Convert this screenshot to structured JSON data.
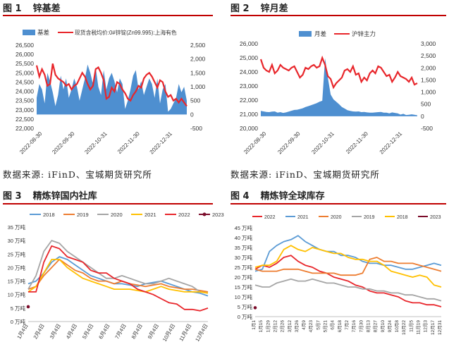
{
  "figures": [
    {
      "num": "图 1",
      "title": "锌基差"
    },
    {
      "num": "图 2",
      "title": "锌月差"
    },
    {
      "num": "图 3",
      "title": "精炼锌国内社库"
    },
    {
      "num": "图 4",
      "title": "精炼锌全球库存"
    }
  ],
  "source_top_left": "数据来源:  iFinD、宝城期货研究所",
  "source_top_right": "数据来源:  iFinD、宝城期货研究所",
  "colors": {
    "blue": "#4e8fd0",
    "red": "#e8262b",
    "orange": "#ed7d31",
    "gray": "#a5a5a5",
    "yellow": "#ffc000",
    "darkred": "#7b0c2a",
    "bluelight": "#5b9bd5"
  },
  "chart_data": [
    {
      "type": "area+line",
      "title": "",
      "legend": [
        "基差",
        "现货含税均价:0#锌锭(Zn99.995):上海有色"
      ],
      "x_ticks": [
        "2022-08-30",
        "2022-09-30",
        "2022-10-31",
        "2022-11-30",
        "2022-12-31"
      ],
      "y_left_ticks": [
        "22,000",
        "22,500",
        "23,000",
        "23,500",
        "24,000",
        "24,500",
        "25,000",
        "25,500",
        "26,000",
        "26,500"
      ],
      "y_left_lim": [
        22000,
        26500
      ],
      "y_right_ticks": [
        "-500",
        "0",
        "500",
        "1,000",
        "1,500",
        "2,000",
        "2,500"
      ],
      "y_right_lim": [
        -500,
        2500
      ],
      "series": [
        {
          "name": "基差",
          "axis": "right",
          "values": [
            600,
            1100,
            900,
            400,
            1500,
            1200,
            800,
            300,
            700,
            1400,
            900,
            1300,
            600,
            900,
            1300,
            1000,
            500,
            900,
            1300,
            1800,
            1500,
            1100,
            1700,
            1000,
            700,
            1600,
            900,
            1300,
            1500,
            1200,
            800,
            1300,
            1100,
            200,
            500,
            900,
            1400,
            1600,
            900,
            1200,
            700,
            1000,
            1300,
            1100,
            600,
            1300,
            400,
            900,
            1100,
            100,
            200,
            400,
            600,
            1100,
            800,
            1000,
            500
          ]
        },
        {
          "name": "现货含税均价:0#锌锭(Zn99.995):上海有色",
          "axis": "left",
          "values": [
            25400,
            24800,
            25200,
            24900,
            24300,
            24400,
            25500,
            24900,
            24700,
            24600,
            24500,
            24300,
            24400,
            24100,
            24300,
            24400,
            24700,
            25000,
            24800,
            24400,
            24100,
            24300,
            25200,
            25300,
            25000,
            24600,
            23600,
            23700,
            24200,
            24000,
            24500,
            24400,
            24100,
            23900,
            23600,
            23500,
            23800,
            24000,
            24300,
            24200,
            24700,
            24900,
            25000,
            24800,
            24500,
            24200,
            24600,
            24500,
            24000,
            23700,
            23800,
            23500,
            23600,
            23400,
            23600,
            23400,
            23200
          ]
        }
      ]
    },
    {
      "type": "area+line",
      "title": "",
      "legend": [
        "月差",
        "沪锌主力"
      ],
      "x_ticks": [
        "2022-08-30",
        "2022-09-30",
        "2022-10-31",
        "2022-11-30",
        "2022-12-31"
      ],
      "y_left_ticks": [
        "20,000",
        "21,000",
        "22,000",
        "23,000",
        "24,000",
        "25,000",
        "26,000"
      ],
      "y_left_lim": [
        20000,
        26000
      ],
      "y_right_ticks": [
        "-500",
        "0",
        "500",
        "1,000",
        "1,500",
        "2,000",
        "2,500",
        "3,000"
      ],
      "y_right_lim": [
        -500,
        3000
      ],
      "series": [
        {
          "name": "月差",
          "axis": "right",
          "values": [
            220,
            200,
            180,
            170,
            190,
            200,
            150,
            170,
            140,
            160,
            190,
            230,
            260,
            270,
            300,
            330,
            380,
            420,
            460,
            500,
            540,
            600,
            640,
            2400,
            1600,
            900,
            700,
            600,
            500,
            380,
            320,
            250,
            220,
            200,
            190,
            200,
            170,
            180,
            160,
            150,
            150,
            160,
            170,
            180,
            150,
            150,
            120,
            160,
            140,
            120,
            70,
            100,
            50,
            60,
            80,
            60,
            40
          ]
        },
        {
          "name": "沪锌主力",
          "axis": "left",
          "values": [
            24900,
            24300,
            24100,
            24000,
            24500,
            23900,
            24100,
            24500,
            24300,
            24200,
            24100,
            24300,
            24400,
            24000,
            23600,
            23800,
            24300,
            24200,
            24400,
            24500,
            24300,
            24400,
            25000,
            24500,
            23700,
            23500,
            22900,
            23200,
            23400,
            23600,
            24100,
            24200,
            24000,
            24400,
            23800,
            23900,
            23300,
            23600,
            23400,
            23900,
            24100,
            23900,
            24400,
            24300,
            24000,
            23700,
            23800,
            23300,
            23600,
            24000,
            23700,
            23600,
            23500,
            23300,
            23600,
            23100,
            23200
          ]
        }
      ]
    },
    {
      "type": "line",
      "title": "",
      "legend": [
        "2018",
        "2019",
        "2020",
        "2021",
        "2022",
        "2023"
      ],
      "x_ticks": [
        "1月4日",
        "2月4日",
        "3月4日",
        "4月4日",
        "5月4日",
        "6月4日",
        "7月4日",
        "8月4日",
        "9月4日",
        "10月4日",
        "11月4日",
        "12月4日"
      ],
      "y_ticks": [
        "0 万吨",
        "5 万吨",
        "10 万吨",
        "15 万吨",
        "20 万吨",
        "25 万吨",
        "30 万吨",
        "35 万吨"
      ],
      "ylim": [
        0,
        35
      ],
      "x_lim": [
        0,
        11.5
      ],
      "series": [
        {
          "name": "2018",
          "x": [
            0,
            0.5,
            1,
            1.5,
            2,
            2.5,
            3,
            3.5,
            4,
            4.5,
            5,
            5.5,
            6,
            6.5,
            7,
            7.5,
            8,
            8.5,
            9,
            9.5,
            10,
            10.5,
            11,
            11.5
          ],
          "values": [
            14,
            15,
            18,
            22,
            24,
            23,
            21,
            19,
            17,
            16,
            15,
            14,
            14,
            13.5,
            13,
            14,
            14.5,
            15,
            14,
            13,
            12,
            11,
            10.5,
            9.5
          ]
        },
        {
          "name": "2019",
          "x": [
            0,
            0.5,
            1,
            1.5,
            2,
            2.5,
            3,
            3.5,
            4,
            4.5,
            5,
            5.5,
            6,
            6.5,
            7,
            7.5,
            8,
            8.5,
            9,
            9.5,
            10,
            10.5,
            11,
            11.5
          ],
          "values": [
            12,
            13,
            17,
            20,
            23,
            21,
            19,
            18,
            16,
            15,
            15,
            14,
            15,
            14,
            13.5,
            13,
            13.5,
            14,
            13,
            12.5,
            12,
            12,
            11.5,
            11
          ]
        },
        {
          "name": "2020",
          "x": [
            0,
            0.5,
            1,
            1.5,
            2,
            2.5,
            3,
            3.5,
            4,
            4.5,
            5,
            5.5,
            6,
            6.5,
            7,
            7.5,
            8,
            8.5,
            9,
            9.5,
            10,
            10.5,
            11,
            11.5
          ],
          "values": [
            12,
            17,
            26,
            30,
            29,
            26,
            24,
            22,
            20,
            18,
            16,
            16,
            17,
            16,
            15,
            14,
            14,
            15,
            16,
            15,
            14,
            13,
            11,
            10.5
          ]
        },
        {
          "name": "2021",
          "x": [
            0,
            0.5,
            1,
            1.5,
            2,
            2.5,
            3,
            3.5,
            4,
            4.5,
            5,
            5.5,
            6,
            6.5,
            7,
            7.5,
            8,
            8.5,
            9,
            9.5,
            10,
            10.5,
            11,
            11.5
          ],
          "values": [
            11,
            13,
            18,
            23,
            23,
            20,
            18,
            16,
            15,
            14,
            13,
            12,
            12,
            12,
            11.5,
            11,
            12,
            13,
            12,
            11.5,
            11,
            11,
            11,
            10.5
          ]
        },
        {
          "name": "2022",
          "x": [
            0,
            0.5,
            1,
            1.5,
            2,
            2.5,
            3,
            3.5,
            4,
            4.5,
            5,
            5.5,
            6,
            6.5,
            7,
            7.5,
            8,
            8.5,
            9,
            9.5,
            10,
            10.5,
            11,
            11.5
          ],
          "values": [
            11,
            11,
            22,
            28,
            27,
            24,
            23,
            22,
            19,
            18,
            18,
            16,
            15,
            14,
            12,
            11,
            10,
            8.5,
            7,
            6.5,
            4.5,
            4.5,
            4,
            5
          ]
        },
        {
          "name": "2023",
          "x": [
            0
          ],
          "values": [
            5.5
          ]
        }
      ]
    },
    {
      "type": "line",
      "title": "",
      "legend": [
        "2022",
        "2021",
        "2020",
        "2019",
        "2018",
        "2023"
      ],
      "x_ticks": [
        "1月1",
        "1月15",
        "1月29",
        "2月12",
        "2月26",
        "3月12",
        "3月26",
        "4月9",
        "4月23",
        "5月7",
        "5月21",
        "6月4",
        "6月18",
        "7月2",
        "7月16",
        "7月30",
        "8月13",
        "8月27",
        "9月10",
        "9月24",
        "10月8",
        "10月22",
        "11月5",
        "11月19",
        "12月3",
        "12月17",
        "12月31"
      ],
      "y_ticks": [
        "0 万吨",
        "5 万吨",
        "10 万吨",
        "15 万吨",
        "20 万吨",
        "25 万吨",
        "30 万吨",
        "35 万吨",
        "40 万吨",
        "45 万吨"
      ],
      "ylim": [
        0,
        45
      ],
      "x_lim": [
        0,
        52
      ],
      "series": [
        {
          "name": "2022",
          "x": [
            0,
            2,
            4,
            6,
            8,
            10,
            12,
            14,
            16,
            18,
            20,
            22,
            24,
            26,
            28,
            30,
            32,
            34,
            36,
            38,
            40,
            42,
            44,
            46,
            48,
            50,
            52
          ],
          "values": [
            24,
            26,
            25,
            27,
            30,
            31,
            28,
            26,
            25,
            23,
            22,
            20,
            19,
            18,
            16,
            15,
            13,
            12,
            12,
            11,
            10,
            8,
            7,
            7,
            6,
            6,
            5
          ]
        },
        {
          "name": "2021",
          "x": [
            0,
            2,
            4,
            6,
            8,
            10,
            12,
            14,
            16,
            18,
            20,
            22,
            24,
            26,
            28,
            30,
            32,
            34,
            36,
            38,
            40,
            42,
            44,
            46,
            48,
            50,
            52
          ],
          "values": [
            23,
            24,
            33,
            36,
            38,
            39,
            41,
            38,
            36,
            34,
            33,
            33,
            31,
            31,
            30,
            28,
            27,
            27,
            26,
            26,
            25,
            24,
            24,
            25,
            26,
            27,
            26
          ]
        },
        {
          "name": "2020",
          "x": [
            0,
            2,
            4,
            6,
            8,
            10,
            12,
            14,
            16,
            18,
            20,
            22,
            24,
            26,
            28,
            30,
            32,
            34,
            36,
            38,
            40,
            42,
            44,
            46,
            48,
            50,
            52
          ],
          "values": [
            24,
            23,
            23,
            23,
            24,
            24,
            24,
            23,
            22,
            22,
            22,
            22,
            21,
            21,
            21,
            22,
            29,
            30,
            28,
            28,
            27,
            27,
            27,
            26,
            25,
            24,
            23
          ]
        },
        {
          "name": "2019",
          "x": [
            0,
            2,
            4,
            6,
            8,
            10,
            12,
            14,
            16,
            18,
            20,
            22,
            24,
            26,
            28,
            30,
            32,
            34,
            36,
            38,
            40,
            42,
            44,
            46,
            48,
            50,
            52
          ],
          "values": [
            16,
            15,
            15,
            17,
            18,
            19,
            18,
            18,
            19,
            18,
            17,
            17,
            16,
            15,
            15,
            14,
            14,
            13,
            13,
            12,
            12,
            11,
            11,
            10,
            9,
            9,
            8
          ]
        },
        {
          "name": "2018",
          "x": [
            0,
            2,
            4,
            6,
            8,
            10,
            12,
            14,
            16,
            18,
            20,
            22,
            24,
            26,
            28,
            30,
            32,
            34,
            36,
            38,
            40,
            42,
            44,
            46,
            48,
            50,
            52
          ],
          "values": [
            25,
            26,
            26,
            28,
            34,
            36,
            34,
            33,
            35,
            34,
            33,
            32,
            32,
            30,
            29,
            29,
            28,
            28,
            26,
            23,
            22,
            21,
            20,
            21,
            20,
            16,
            15
          ]
        },
        {
          "name": "2023",
          "x": [
            0
          ],
          "values": [
            4.5
          ]
        }
      ]
    }
  ]
}
